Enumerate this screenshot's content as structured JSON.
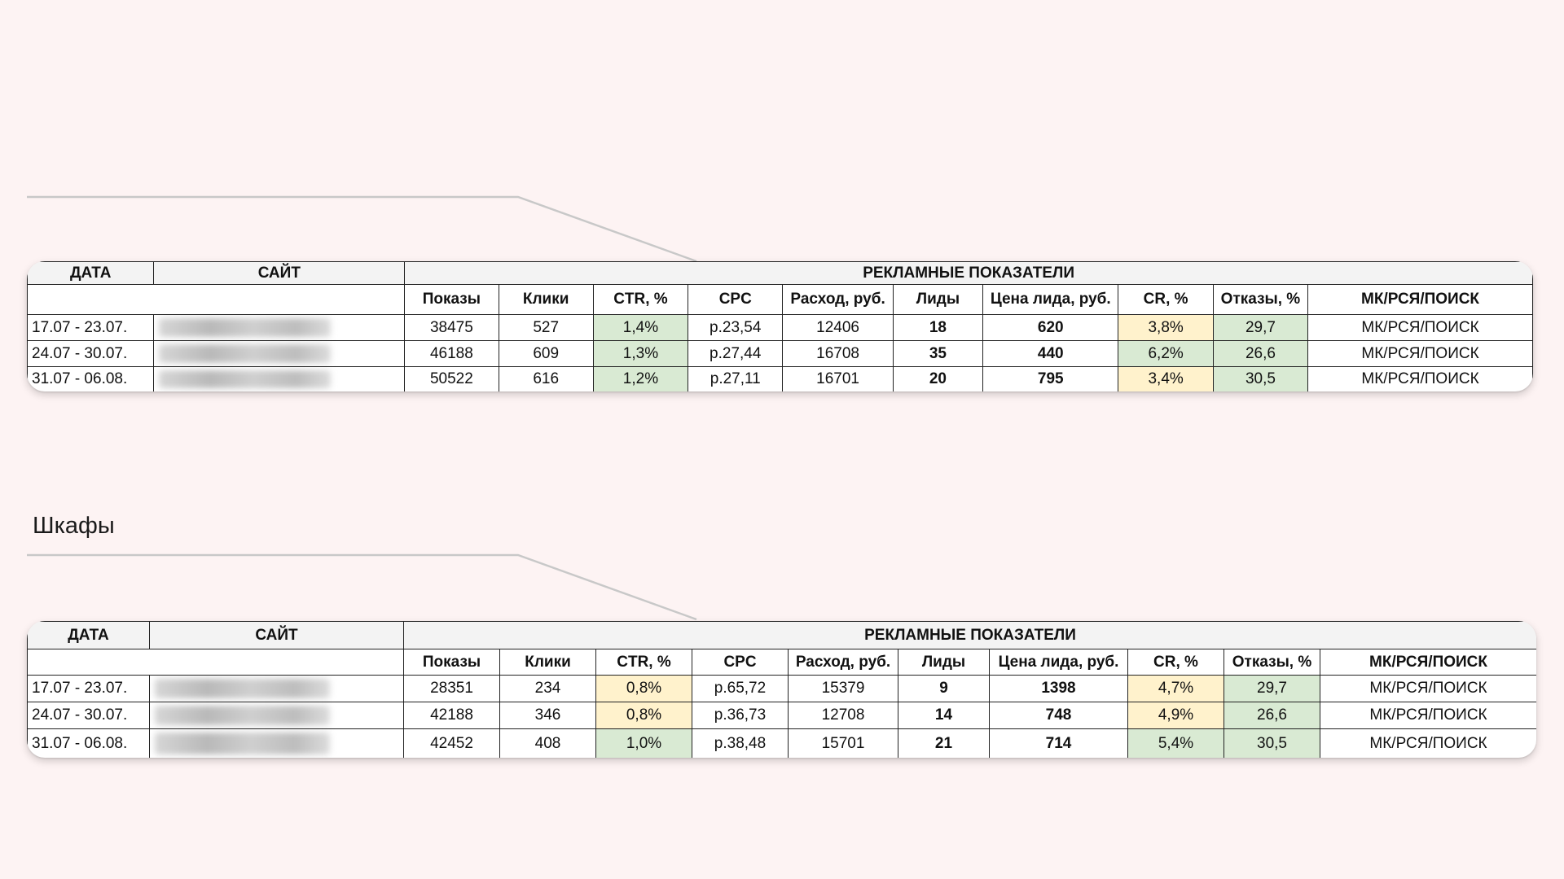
{
  "section_title": "Шкафы",
  "colors": {
    "background": "#fdf3f3",
    "good": "#d9ead3",
    "warn": "#fff2cc"
  },
  "headers": {
    "date": "ДАТА",
    "site": "САЙТ",
    "group": "РЕКЛАМНЫЕ ПОКАЗАТЕЛИ",
    "columns": [
      "Показы",
      "Клики",
      "CTR, %",
      "CPC",
      "Расход, руб.",
      "Лиды",
      "Цена лида, руб.",
      "CR, %",
      "Отказы, %",
      "МК/РСЯ/ПОИСК"
    ]
  },
  "tables": [
    {
      "rows": [
        {
          "date": "17.07 - 23.07.",
          "site_blurred": true,
          "impressions": "38475",
          "clicks": "527",
          "ctr": "1,4%",
          "ctr_status": "green",
          "cpc": "р.23,54",
          "spend": "12406",
          "leads": "18",
          "lead_price": "620",
          "cr": "3,8%",
          "cr_status": "yellow",
          "bounce": "29,7",
          "bounce_status": "green",
          "channel": "МК/РСЯ/ПОИСК"
        },
        {
          "date": "24.07 - 30.07.",
          "site_blurred": true,
          "impressions": "46188",
          "clicks": "609",
          "ctr": "1,3%",
          "ctr_status": "green",
          "cpc": "р.27,44",
          "spend": "16708",
          "leads": "35",
          "lead_price": "440",
          "cr": "6,2%",
          "cr_status": "green",
          "bounce": "26,6",
          "bounce_status": "green",
          "channel": "МК/РСЯ/ПОИСК"
        },
        {
          "date": "31.07 - 06.08.",
          "site_blurred": true,
          "impressions": "50522",
          "clicks": "616",
          "ctr": "1,2%",
          "ctr_status": "green",
          "cpc": "р.27,11",
          "spend": "16701",
          "leads": "20",
          "lead_price": "795",
          "cr": "3,4%",
          "cr_status": "yellow",
          "bounce": "30,5",
          "bounce_status": "green",
          "channel": "МК/РСЯ/ПОИСК"
        }
      ]
    },
    {
      "rows": [
        {
          "date": "17.07 - 23.07.",
          "site_blurred": true,
          "impressions": "28351",
          "clicks": "234",
          "ctr": "0,8%",
          "ctr_status": "yellow",
          "cpc": "р.65,72",
          "spend": "15379",
          "leads": "9",
          "lead_price": "1398",
          "cr": "4,7%",
          "cr_status": "yellow",
          "bounce": "29,7",
          "bounce_status": "green",
          "channel": "МК/РСЯ/ПОИСК"
        },
        {
          "date": "24.07 - 30.07.",
          "site_blurred": true,
          "impressions": "42188",
          "clicks": "346",
          "ctr": "0,8%",
          "ctr_status": "yellow",
          "cpc": "р.36,73",
          "spend": "12708",
          "leads": "14",
          "lead_price": "748",
          "cr": "4,9%",
          "cr_status": "yellow",
          "bounce": "26,6",
          "bounce_status": "green",
          "channel": "МК/РСЯ/ПОИСК"
        },
        {
          "date": "31.07 - 06.08.",
          "site_blurred": true,
          "impressions": "42452",
          "clicks": "408",
          "ctr": "1,0%",
          "ctr_status": "green",
          "cpc": "р.38,48",
          "spend": "15701",
          "leads": "21",
          "lead_price": "714",
          "cr": "5,4%",
          "cr_status": "green",
          "bounce": "30,5",
          "bounce_status": "green",
          "channel": "МК/РСЯ/ПОИСК"
        }
      ]
    }
  ]
}
